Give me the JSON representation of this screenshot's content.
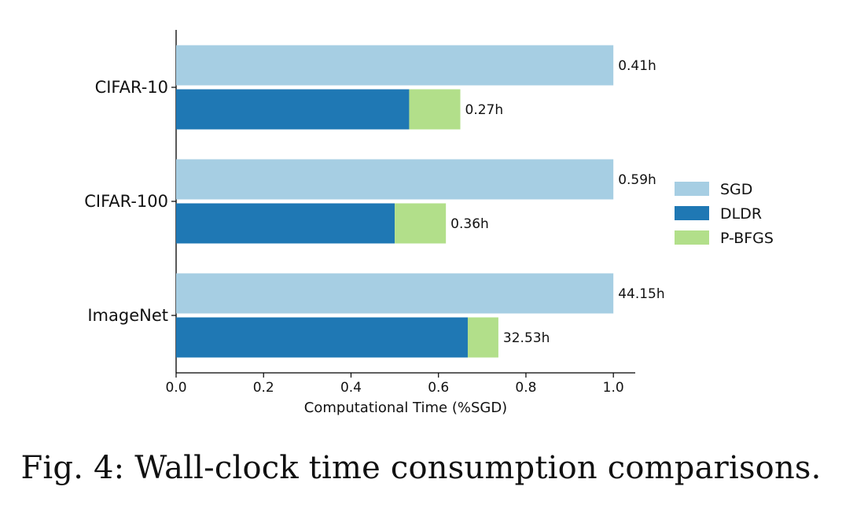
{
  "chart_data": {
    "type": "bar",
    "orientation": "horizontal",
    "stacked_second_bar": true,
    "categories": [
      "CIFAR-10",
      "CIFAR-100",
      "ImageNet"
    ],
    "series": [
      {
        "name": "SGD",
        "color": "#a6cee3",
        "values": [
          1.0,
          1.0,
          1.0
        ],
        "labels": [
          "0.41h",
          "0.59h",
          "44.15h"
        ]
      },
      {
        "name": "DLDR",
        "color": "#1f78b4",
        "values": [
          0.533,
          0.5,
          0.667
        ]
      },
      {
        "name": "P-BFGS",
        "color": "#b2df8a",
        "values": [
          0.117,
          0.117,
          0.07
        ],
        "labels": [
          "0.27h",
          "0.36h",
          "32.53h"
        ]
      }
    ],
    "xlabel": "Computational Time (%SGD)",
    "ylabel": "",
    "xlim": [
      0.0,
      1.05
    ],
    "xticks": [
      "0.0",
      "0.2",
      "0.4",
      "0.6",
      "0.8",
      "1.0"
    ],
    "legend_position": "right",
    "grid": false
  },
  "caption": "Fig. 4: Wall-clock time consumption comparisons."
}
